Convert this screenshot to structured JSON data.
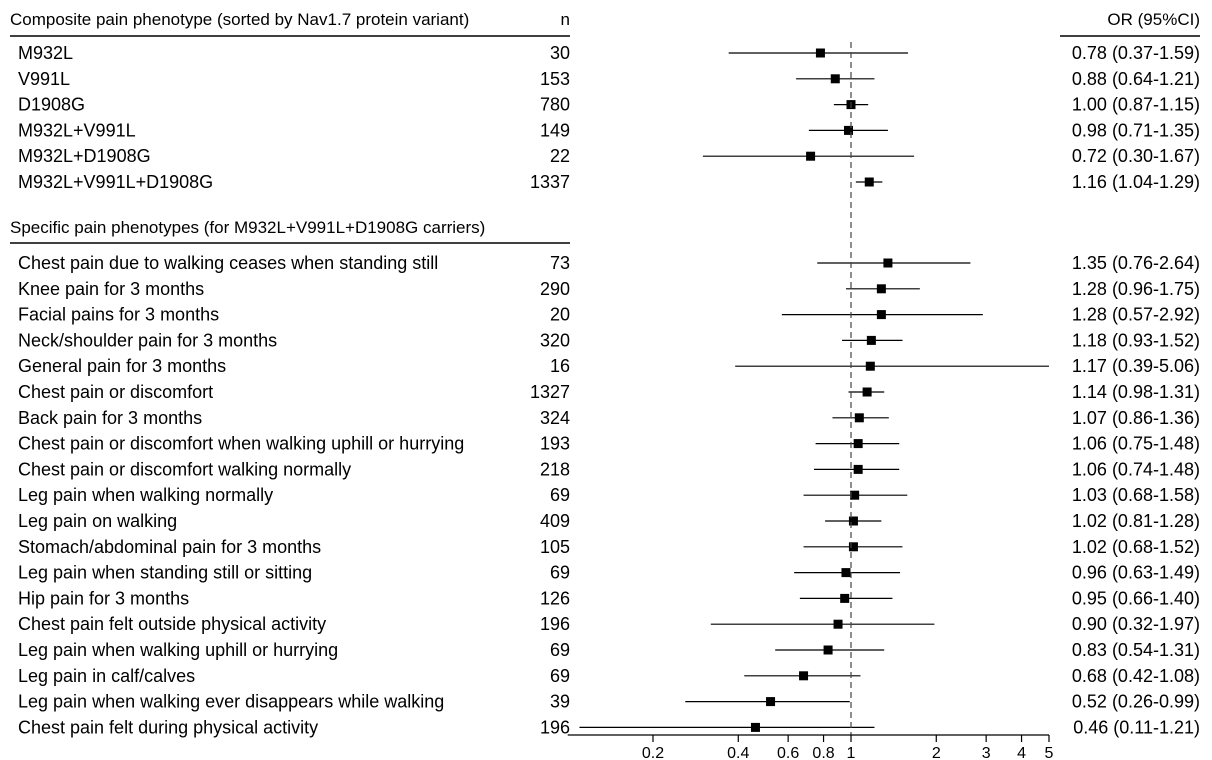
{
  "chart_data": {
    "type": "forest",
    "x_scale": "log",
    "xlim": [
      0.1,
      5
    ],
    "reference_line": 1,
    "x_ticks": [
      0.2,
      0.4,
      0.6,
      0.8,
      1,
      2,
      3,
      4,
      5
    ],
    "x_tick_labels": [
      "0.2",
      "0.4",
      "0.6",
      "0.8",
      "1",
      "2",
      "3",
      "4",
      "5"
    ],
    "n_header": "n",
    "or_header": "OR (95%CI)",
    "sections": [
      {
        "header": "Composite pain phenotype (sorted by Nav1.7 protein variant)",
        "rows": [
          {
            "label": "M932L",
            "n": "30",
            "or": 0.78,
            "lo": 0.37,
            "hi": 1.59,
            "or_text": "0.78 (0.37-1.59)"
          },
          {
            "label": "V991L",
            "n": "153",
            "or": 0.88,
            "lo": 0.64,
            "hi": 1.21,
            "or_text": "0.88 (0.64-1.21)"
          },
          {
            "label": "D1908G",
            "n": "780",
            "or": 1.0,
            "lo": 0.87,
            "hi": 1.15,
            "or_text": "1.00 (0.87-1.15)"
          },
          {
            "label": "M932L+V991L",
            "n": "149",
            "or": 0.98,
            "lo": 0.71,
            "hi": 1.35,
            "or_text": "0.98 (0.71-1.35)"
          },
          {
            "label": "M932L+D1908G",
            "n": "22",
            "or": 0.72,
            "lo": 0.3,
            "hi": 1.67,
            "or_text": "0.72 (0.30-1.67)"
          },
          {
            "label": "M932L+V991L+D1908G",
            "n": "1337",
            "or": 1.16,
            "lo": 1.04,
            "hi": 1.29,
            "or_text": "1.16 (1.04-1.29)"
          }
        ]
      },
      {
        "header": "Specific pain phenotypes (for M932L+V991L+D1908G carriers)",
        "rows": [
          {
            "label": "Chest pain due to walking ceases when standing still",
            "n": "73",
            "or": 1.35,
            "lo": 0.76,
            "hi": 2.64,
            "or_text": "1.35 (0.76-2.64)"
          },
          {
            "label": "Knee pain for 3 months",
            "n": "290",
            "or": 1.28,
            "lo": 0.96,
            "hi": 1.75,
            "or_text": "1.28 (0.96-1.75)"
          },
          {
            "label": "Facial pains for 3 months",
            "n": "20",
            "or": 1.28,
            "lo": 0.57,
            "hi": 2.92,
            "or_text": "1.28 (0.57-2.92)"
          },
          {
            "label": "Neck/shoulder pain for 3 months",
            "n": "320",
            "or": 1.18,
            "lo": 0.93,
            "hi": 1.52,
            "or_text": "1.18 (0.93-1.52)"
          },
          {
            "label": "General pain for 3 months",
            "n": "16",
            "or": 1.17,
            "lo": 0.39,
            "hi": 5.06,
            "or_text": "1.17 (0.39-5.06)"
          },
          {
            "label": "Chest pain or discomfort",
            "n": "1327",
            "or": 1.14,
            "lo": 0.98,
            "hi": 1.31,
            "or_text": "1.14 (0.98-1.31)"
          },
          {
            "label": "Back pain for 3 months",
            "n": "324",
            "or": 1.07,
            "lo": 0.86,
            "hi": 1.36,
            "or_text": "1.07 (0.86-1.36)"
          },
          {
            "label": "Chest pain or discomfort when walking uphill or hurrying",
            "n": "193",
            "or": 1.06,
            "lo": 0.75,
            "hi": 1.48,
            "or_text": "1.06 (0.75-1.48)"
          },
          {
            "label": "Chest pain or discomfort walking normally",
            "n": "218",
            "or": 1.06,
            "lo": 0.74,
            "hi": 1.48,
            "or_text": "1.06 (0.74-1.48)"
          },
          {
            "label": "Leg pain when walking normally",
            "n": "69",
            "or": 1.03,
            "lo": 0.68,
            "hi": 1.58,
            "or_text": "1.03 (0.68-1.58)"
          },
          {
            "label": "Leg pain on walking",
            "n": "409",
            "or": 1.02,
            "lo": 0.81,
            "hi": 1.28,
            "or_text": "1.02 (0.81-1.28)"
          },
          {
            "label": "Stomach/abdominal pain for 3 months",
            "n": "105",
            "or": 1.02,
            "lo": 0.68,
            "hi": 1.52,
            "or_text": "1.02 (0.68-1.52)"
          },
          {
            "label": "Leg pain when standing still or sitting",
            "n": "69",
            "or": 0.96,
            "lo": 0.63,
            "hi": 1.49,
            "or_text": "0.96 (0.63-1.49)"
          },
          {
            "label": "Hip pain for 3 months",
            "n": "126",
            "or": 0.95,
            "lo": 0.66,
            "hi": 1.4,
            "or_text": "0.95 (0.66-1.40)"
          },
          {
            "label": "Chest pain felt outside physical activity",
            "n": "196",
            "or": 0.9,
            "lo": 0.32,
            "hi": 1.97,
            "or_text": "0.90 (0.32-1.97)"
          },
          {
            "label": "Leg pain when walking uphill or hurrying",
            "n": "69",
            "or": 0.83,
            "lo": 0.54,
            "hi": 1.31,
            "or_text": "0.83 (0.54-1.31)"
          },
          {
            "label": "Leg pain in calf/calves",
            "n": "69",
            "or": 0.68,
            "lo": 0.42,
            "hi": 1.08,
            "or_text": "0.68 (0.42-1.08)"
          },
          {
            "label": "Leg pain when walking ever disappears while walking",
            "n": "39",
            "or": 0.52,
            "lo": 0.26,
            "hi": 0.99,
            "or_text": "0.52 (0.26-0.99)"
          },
          {
            "label": "Chest pain felt during physical activity",
            "n": "196",
            "or": 0.46,
            "lo": 0.11,
            "hi": 1.21,
            "or_text": "0.46 (0.11-1.21)"
          }
        ]
      }
    ]
  }
}
